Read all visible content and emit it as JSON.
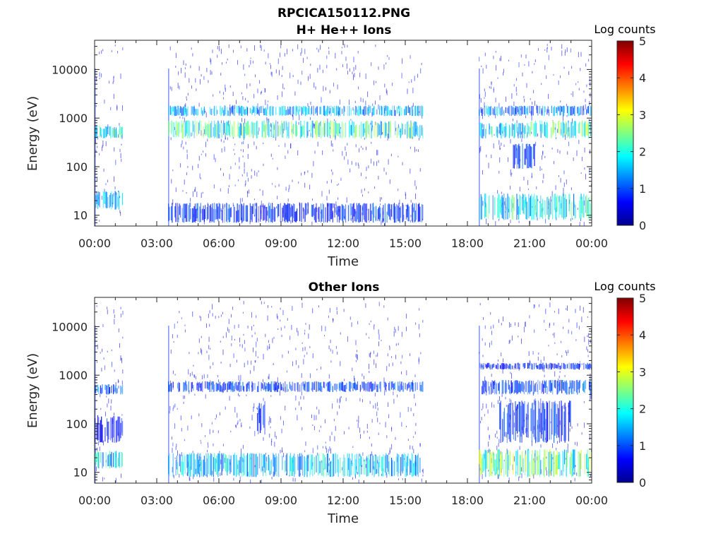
{
  "figure": {
    "title_line1": "RPCICA150112.PNG"
  },
  "colors": {
    "axis": "#262626",
    "jet": [
      "#00008f",
      "#0000ff",
      "#0080ff",
      "#00ffff",
      "#80ff80",
      "#ffff00",
      "#ff8000",
      "#ff0000",
      "#800000"
    ]
  },
  "chart_data": [
    {
      "type": "heatmap",
      "title": "H+ He++ Ions",
      "xlabel": "Time",
      "ylabel": "Energy (eV)",
      "x_tick_labels": [
        "00:00",
        "03:00",
        "06:00",
        "09:00",
        "12:00",
        "15:00",
        "18:00",
        "21:00",
        "00:00"
      ],
      "x_ticks_hours": [
        0,
        3,
        6,
        9,
        12,
        15,
        18,
        21,
        24
      ],
      "xlim_hours": [
        0,
        24
      ],
      "y_scale": "log",
      "ylim": [
        6,
        40000
      ],
      "y_ticks": [
        10,
        100,
        1000,
        10000
      ],
      "y_tick_labels": [
        "10",
        "100",
        "1000",
        "10000"
      ],
      "colorbar": {
        "label": "Log counts",
        "range": [
          0,
          5
        ],
        "ticks": [
          "0",
          "1",
          "2",
          "3",
          "4",
          "5"
        ],
        "colormap": "jet"
      },
      "data_intervals_hours": [
        [
          0,
          1.35
        ],
        [
          3.55,
          15.85
        ],
        [
          18.55,
          24
        ]
      ],
      "bands": [
        {
          "t": [
            0,
            1.35
          ],
          "e": [
            380,
            700
          ],
          "level": 2.0
        },
        {
          "t": [
            0,
            1.35
          ],
          "e": [
            13,
            32
          ],
          "level": 1.5
        },
        {
          "t": [
            3.55,
            15.85
          ],
          "e": [
            380,
            900
          ],
          "level": 2.2
        },
        {
          "t": [
            3.55,
            15.85
          ],
          "e": [
            1100,
            1800
          ],
          "level": 1.5
        },
        {
          "t": [
            3.55,
            15.85
          ],
          "e": [
            7,
            18
          ],
          "level": 0.9
        },
        {
          "t": [
            18.55,
            24
          ],
          "e": [
            1100,
            1800
          ],
          "level": 1.3
        },
        {
          "t": [
            18.55,
            21.0
          ],
          "e": [
            380,
            800
          ],
          "level": 1.8
        },
        {
          "t": [
            21.0,
            24
          ],
          "e": [
            380,
            900
          ],
          "level": 2.3
        },
        {
          "t": [
            20.2,
            21.3
          ],
          "e": [
            90,
            300
          ],
          "level": 1.0
        },
        {
          "t": [
            18.55,
            24
          ],
          "e": [
            8,
            28
          ],
          "level": 1.9
        }
      ]
    },
    {
      "type": "heatmap",
      "title": "Other Ions",
      "xlabel": "Time",
      "ylabel": "Energy (eV)",
      "x_tick_labels": [
        "00:00",
        "03:00",
        "06:00",
        "09:00",
        "12:00",
        "15:00",
        "18:00",
        "21:00",
        "00:00"
      ],
      "x_ticks_hours": [
        0,
        3,
        6,
        9,
        12,
        15,
        18,
        21,
        24
      ],
      "xlim_hours": [
        0,
        24
      ],
      "y_scale": "log",
      "ylim": [
        6,
        40000
      ],
      "y_ticks": [
        10,
        100,
        1000,
        10000
      ],
      "y_tick_labels": [
        "10",
        "100",
        "1000",
        "10000"
      ],
      "colorbar": {
        "label": "Log counts",
        "range": [
          0,
          5
        ],
        "ticks": [
          "0",
          "1",
          "2",
          "3",
          "4",
          "5"
        ],
        "colormap": "jet"
      },
      "data_intervals_hours": [
        [
          0,
          1.35
        ],
        [
          3.55,
          15.85
        ],
        [
          18.55,
          24
        ]
      ],
      "bands": [
        {
          "t": [
            0,
            1.35
          ],
          "e": [
            400,
            650
          ],
          "level": 1.2
        },
        {
          "t": [
            0,
            1.35
          ],
          "e": [
            12,
            28
          ],
          "level": 1.8
        },
        {
          "t": [
            0,
            1.35
          ],
          "e": [
            40,
            150
          ],
          "level": 0.7
        },
        {
          "t": [
            3.55,
            15.85
          ],
          "e": [
            450,
            750
          ],
          "level": 1.0
        },
        {
          "t": [
            3.55,
            15.85
          ],
          "e": [
            8,
            25
          ],
          "level": 1.7
        },
        {
          "t": [
            7.8,
            8.2
          ],
          "e": [
            60,
            300
          ],
          "level": 0.9
        },
        {
          "t": [
            18.55,
            24
          ],
          "e": [
            1300,
            1800
          ],
          "level": 0.8
        },
        {
          "t": [
            18.55,
            24
          ],
          "e": [
            400,
            800
          ],
          "level": 1.0
        },
        {
          "t": [
            19.5,
            23.0
          ],
          "e": [
            40,
            300
          ],
          "level": 0.9
        },
        {
          "t": [
            18.55,
            24
          ],
          "e": [
            8,
            30
          ],
          "level": 2.4
        }
      ]
    }
  ]
}
